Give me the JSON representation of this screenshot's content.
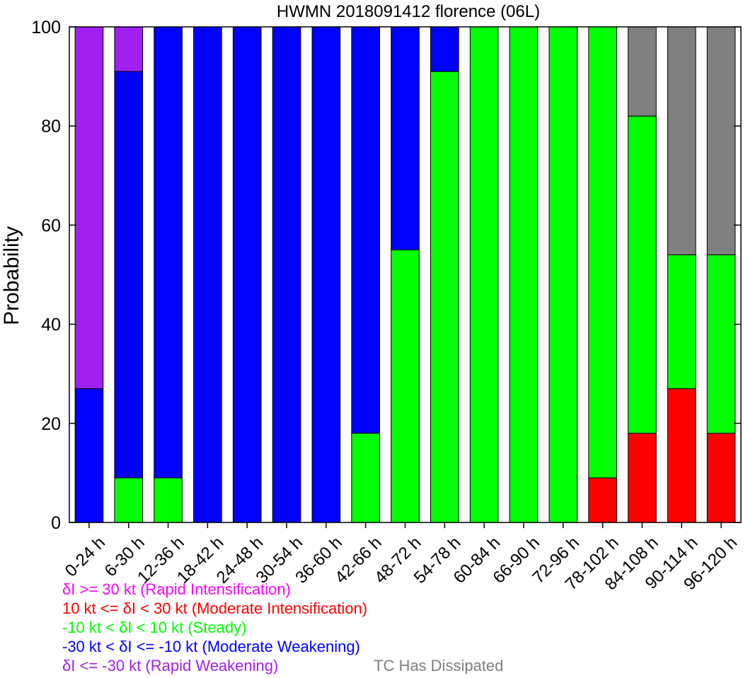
{
  "chart_data": {
    "type": "bar",
    "stacked": true,
    "title": "HWMN 2018091412 florence (06L)",
    "ylabel": "Probability",
    "xlabel": "",
    "ylim": [
      0,
      100
    ],
    "yticks": [
      0,
      20,
      40,
      60,
      80,
      100
    ],
    "categories": [
      "0-24 h",
      "6-30 h",
      "12-36 h",
      "18-42 h",
      "24-48 h",
      "30-54 h",
      "36-60 h",
      "42-66 h",
      "48-72 h",
      "54-78 h",
      "60-84 h",
      "66-90 h",
      "72-96 h",
      "78-102 h",
      "84-108 h",
      "90-114 h",
      "96-120 h"
    ],
    "series": [
      {
        "name": "10 kt <= δI < 30 kt (Moderate Intensification)",
        "color": "#ff0000",
        "values": [
          0,
          0,
          0,
          0,
          0,
          0,
          0,
          0,
          0,
          0,
          0,
          0,
          0,
          9,
          18,
          27,
          18
        ]
      },
      {
        "name": "-10 kt < δI < 10 kt (Steady)",
        "color": "#00ff00",
        "values": [
          0,
          9,
          9,
          0,
          0,
          0,
          0,
          18,
          55,
          91,
          100,
          100,
          100,
          91,
          64,
          27,
          36
        ]
      },
      {
        "name": "-30 kt < δI <= -10 kt (Moderate Weakening)",
        "color": "#0000ff",
        "values": [
          27,
          82,
          91,
          100,
          100,
          100,
          100,
          82,
          45,
          9,
          0,
          0,
          0,
          0,
          0,
          0,
          0
        ]
      },
      {
        "name": "δI <= -30 kt (Rapid Weakening)",
        "color": "#a020f0",
        "values": [
          73,
          9,
          0,
          0,
          0,
          0,
          0,
          0,
          0,
          0,
          0,
          0,
          0,
          0,
          0,
          0,
          0
        ]
      },
      {
        "name": "δI >= 30 kt (Rapid Intensification)",
        "color": "#ff00ff",
        "values": [
          0,
          0,
          0,
          0,
          0,
          0,
          0,
          0,
          0,
          0,
          0,
          0,
          0,
          0,
          0,
          0,
          0
        ]
      },
      {
        "name": "TC Has Dissipated",
        "color": "#808080",
        "values": [
          0,
          0,
          0,
          0,
          0,
          0,
          0,
          0,
          0,
          0,
          0,
          0,
          0,
          0,
          18,
          46,
          46
        ]
      }
    ],
    "stack_order": [
      0,
      1,
      2,
      3,
      4,
      5
    ],
    "legend": {
      "placement": "bottom-left",
      "entries": [
        {
          "text": "δI >= 30 kt (Rapid Intensification)",
          "color": "#ff00ff"
        },
        {
          "text": "10 kt <= δI < 30 kt (Moderate Intensification)",
          "color": "#ff0000"
        },
        {
          "text": "-10 kt < δI < 10 kt (Steady)",
          "color": "#00ff00"
        },
        {
          "text": "-30 kt < δI <= -10 kt (Moderate Weakening)",
          "color": "#0000ff"
        },
        {
          "text": "δI <= -30 kt (Rapid Weakening)",
          "color": "#a020f0"
        },
        {
          "text": "TC Has Dissipated",
          "color": "#808080"
        }
      ]
    },
    "grid": false
  }
}
